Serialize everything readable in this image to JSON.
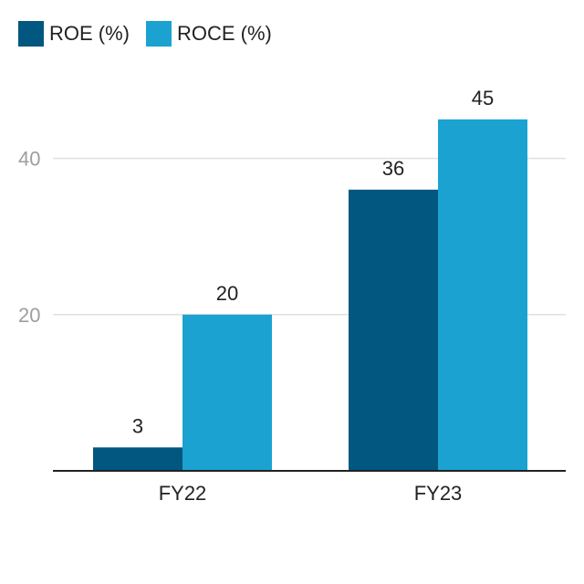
{
  "chart_data": {
    "type": "bar",
    "categories": [
      "FY22",
      "FY23"
    ],
    "series": [
      {
        "name": "ROE (%)",
        "values": [
          3,
          36
        ],
        "color": "#01577f"
      },
      {
        "name": "ROCE (%)",
        "values": [
          20,
          45
        ],
        "color": "#1ba2d0"
      }
    ],
    "yticks": [
      20,
      40
    ],
    "ylim": [
      0,
      50
    ],
    "grid": true,
    "legend_position": "top-left",
    "data_labels": true
  }
}
